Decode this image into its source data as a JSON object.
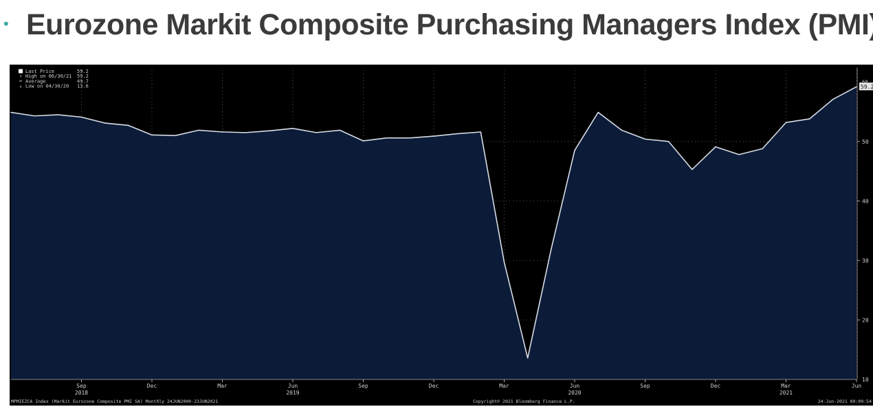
{
  "slide": {
    "bullet": "•",
    "title": "Eurozone Markit Composite Purchasing Managers Index (PMI)"
  },
  "chart_data": {
    "type": "area",
    "title": "",
    "xlabel": "",
    "ylabel": "",
    "ylim": [
      10,
      62
    ],
    "grid": true,
    "legend_position": "top-left",
    "colors": {
      "background": "#000000",
      "fill": "#0b1b38",
      "line": "#d8dde6",
      "grid": "#5a5a5a",
      "text": "#d0d0d0"
    },
    "legend": [
      {
        "label": "Last Price",
        "value": "59.2",
        "marker": "box"
      },
      {
        "label": "High on 06/30/21",
        "value": "59.2",
        "marker": "up"
      },
      {
        "label": "Average",
        "value": "49.7",
        "marker": "dash"
      },
      {
        "label": "Low on 04/30/20",
        "value": "13.6",
        "marker": "down"
      }
    ],
    "last_value_label": "59.2",
    "y_ticks": [
      20,
      30,
      40,
      50
    ],
    "x": [
      "2018-06",
      "2018-07",
      "2018-08",
      "2018-09",
      "2018-10",
      "2018-11",
      "2018-12",
      "2019-01",
      "2019-02",
      "2019-03",
      "2019-04",
      "2019-05",
      "2019-06",
      "2019-07",
      "2019-08",
      "2019-09",
      "2019-10",
      "2019-11",
      "2019-12",
      "2020-01",
      "2020-02",
      "2020-03",
      "2020-04",
      "2020-05",
      "2020-06",
      "2020-07",
      "2020-08",
      "2020-09",
      "2020-10",
      "2020-11",
      "2020-12",
      "2021-01",
      "2021-02",
      "2021-03",
      "2021-04",
      "2021-05",
      "2021-06"
    ],
    "values": [
      54.9,
      54.3,
      54.5,
      54.1,
      53.1,
      52.7,
      51.1,
      51.0,
      51.9,
      51.6,
      51.5,
      51.8,
      52.2,
      51.5,
      51.9,
      50.1,
      50.6,
      50.6,
      50.9,
      51.3,
      51.6,
      29.7,
      13.6,
      31.9,
      48.5,
      54.9,
      51.9,
      50.4,
      50.0,
      45.3,
      49.1,
      47.8,
      48.8,
      53.2,
      53.8,
      57.1,
      59.2
    ],
    "x_tick_labels": [
      {
        "month": "Sep",
        "year": "2018",
        "x": "2018-09"
      },
      {
        "month": "Dec",
        "year": "",
        "x": "2018-12"
      },
      {
        "month": "Mar",
        "year": "",
        "x": "2019-03"
      },
      {
        "month": "Jun",
        "year": "2019",
        "x": "2019-06"
      },
      {
        "month": "Sep",
        "year": "",
        "x": "2019-09"
      },
      {
        "month": "Dec",
        "year": "",
        "x": "2019-12"
      },
      {
        "month": "Mar",
        "year": "",
        "x": "2020-03"
      },
      {
        "month": "Jun",
        "year": "2020",
        "x": "2020-06"
      },
      {
        "month": "Sep",
        "year": "",
        "x": "2020-09"
      },
      {
        "month": "Dec",
        "year": "",
        "x": "2020-12"
      },
      {
        "month": "Mar",
        "year": "2021",
        "x": "2021-03"
      },
      {
        "month": "Jun",
        "year": "",
        "x": "2021-06"
      }
    ],
    "footer_left": "MPMIEZCA Index (Markit Eurozone Composite PMI SA) Monthly 24JUN2000-23JUN2021",
    "footer_center": "Copyright© 2021 Bloomberg Finance L.P.",
    "footer_right": "24-Jun-2021 09:09:54"
  }
}
